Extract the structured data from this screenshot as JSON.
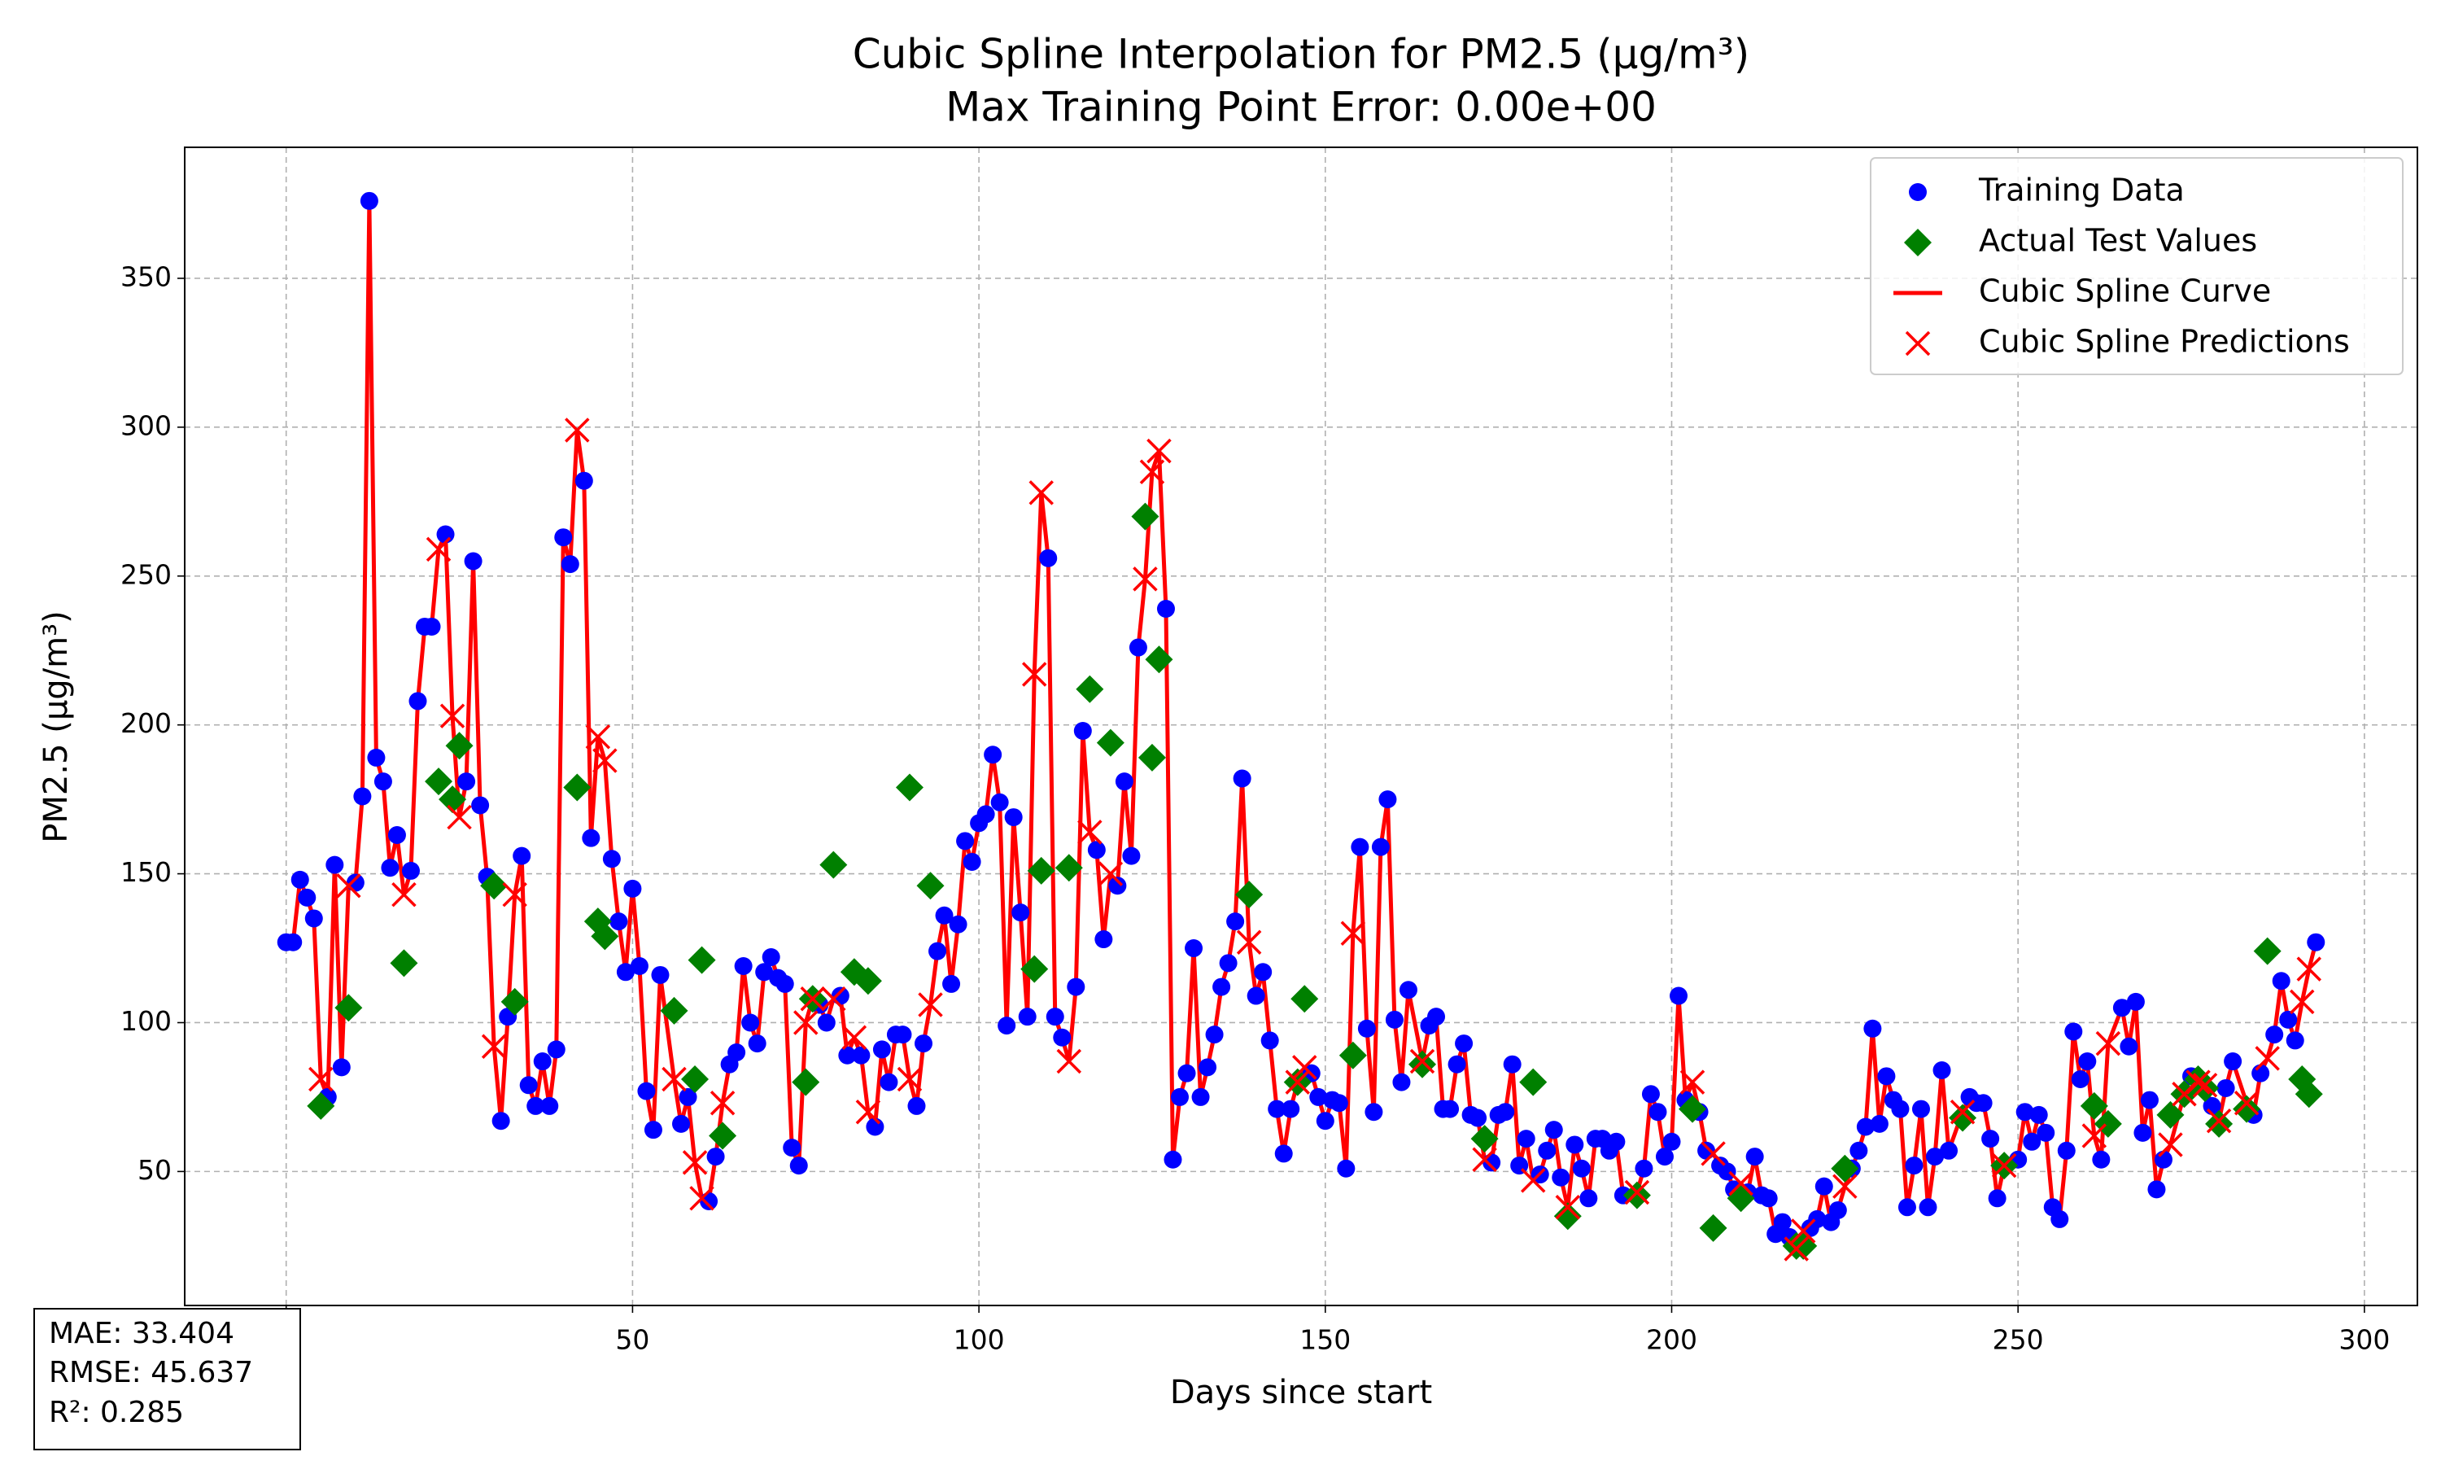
{
  "chart_data": {
    "type": "scatter",
    "title": "Cubic Spline Interpolation for PM2.5 (µg/m³)",
    "subtitle": "Max Training Point Error: 0.00e+00",
    "x_label": "Days since start",
    "y_label": "PM2.5 (µg/m³)",
    "xlim": [
      -14.65,
      307.65
    ],
    "ylim": [
      5,
      394
    ],
    "xticks": [
      0,
      50,
      100,
      150,
      200,
      250,
      300
    ],
    "yticks": [
      50,
      100,
      150,
      200,
      250,
      300,
      350
    ],
    "grid": true,
    "legend": "upper right",
    "metrics": [
      "MAE: 33.404",
      "RMSE: 45.637",
      "R²: 0.285"
    ],
    "series": [
      {
        "name": "Training Data",
        "color": "#0000ff",
        "marker": "circle",
        "x": [
          0,
          1,
          2,
          3,
          4,
          6,
          7,
          8,
          10,
          11,
          12,
          13,
          14,
          15,
          16,
          18,
          19,
          20,
          21,
          23,
          26,
          27,
          28,
          29,
          31,
          32,
          34,
          35,
          36,
          37,
          38,
          39,
          40,
          41,
          43,
          44,
          47,
          48,
          49,
          50,
          51,
          52,
          53,
          54,
          57,
          58,
          61,
          62,
          64,
          65,
          66,
          67,
          68,
          69,
          70,
          71,
          72,
          73,
          74,
          77,
          78,
          80,
          81,
          83,
          85,
          86,
          87,
          88,
          89,
          91,
          92,
          94,
          95,
          96,
          97,
          98,
          99,
          100,
          101,
          102,
          103,
          104,
          105,
          106,
          107,
          110,
          111,
          112,
          114,
          115,
          117,
          118,
          120,
          121,
          122,
          123,
          127,
          128,
          129,
          130,
          131,
          132,
          133,
          134,
          135,
          136,
          137,
          138,
          140,
          141,
          142,
          143,
          144,
          145,
          148,
          149,
          150,
          151,
          152,
          153,
          155,
          156,
          157,
          158,
          159,
          160,
          161,
          162,
          165,
          166,
          167,
          168,
          169,
          170,
          171,
          172,
          174,
          175,
          176,
          177,
          178,
          179,
          181,
          182,
          183,
          184,
          186,
          187,
          188,
          189,
          190,
          191,
          192,
          193,
          196,
          197,
          198,
          199,
          200,
          201,
          202,
          204,
          205,
          207,
          208,
          209,
          211,
          212,
          213,
          214,
          215,
          216,
          217,
          220,
          221,
          222,
          223,
          224,
          226,
          227,
          228,
          229,
          230,
          231,
          232,
          233,
          234,
          235,
          236,
          237,
          238,
          239,
          240,
          243,
          244,
          245,
          246,
          247,
          250,
          251,
          252,
          253,
          254,
          255,
          256,
          257,
          258,
          259,
          260,
          262,
          265,
          266,
          267,
          268,
          269,
          270,
          271,
          275,
          278,
          280,
          281,
          284,
          285,
          287,
          288,
          289,
          290,
          293
        ],
        "values": [
          127,
          127,
          148,
          142,
          135,
          75,
          153,
          85,
          147,
          176,
          376,
          189,
          181,
          152,
          163,
          151,
          208,
          233,
          233,
          264,
          181,
          255,
          173,
          149,
          67,
          102,
          156,
          79,
          72,
          87,
          72,
          91,
          263,
          254,
          282,
          162,
          155,
          134,
          117,
          145,
          119,
          77,
          64,
          116,
          66,
          75,
          40,
          55,
          86,
          90,
          119,
          100,
          93,
          117,
          122,
          115,
          113,
          58,
          52,
          106,
          100,
          109,
          89,
          89,
          65,
          91,
          80,
          96,
          96,
          72,
          93,
          124,
          136,
          113,
          133,
          161,
          154,
          167,
          170,
          190,
          174,
          99,
          169,
          137,
          102,
          256,
          102,
          95,
          112,
          198,
          158,
          128,
          146,
          181,
          156,
          226,
          239,
          54,
          75,
          83,
          125,
          75,
          85,
          96,
          112,
          120,
          134,
          182,
          109,
          117,
          94,
          71,
          56,
          71,
          83,
          75,
          67,
          74,
          73,
          51,
          159,
          98,
          70,
          159,
          175,
          101,
          80,
          111,
          99,
          102,
          71,
          71,
          86,
          93,
          69,
          68,
          53,
          69,
          70,
          86,
          52,
          61,
          49,
          57,
          64,
          48,
          59,
          51,
          41,
          61,
          61,
          57,
          60,
          42,
          51,
          76,
          70,
          55,
          60,
          109,
          74,
          70,
          57,
          52,
          50,
          44,
          43,
          55,
          42,
          41,
          29,
          33,
          28,
          31,
          34,
          45,
          33,
          37,
          51,
          57,
          65,
          98,
          66,
          82,
          74,
          71,
          38,
          52,
          71,
          38,
          55,
          84,
          57,
          75,
          73,
          73,
          61,
          41,
          54,
          70,
          60,
          69,
          63,
          38,
          34,
          57,
          97,
          81,
          87,
          54,
          105,
          92,
          107,
          63,
          74,
          44,
          54,
          82,
          72,
          78,
          87,
          69,
          83,
          96,
          114,
          101,
          94,
          127
        ]
      },
      {
        "name": "Actual Test Values",
        "color": "#008000",
        "marker": "diamond",
        "x": [
          5,
          9,
          17,
          22,
          24,
          25,
          30,
          33,
          42,
          45,
          46,
          56,
          59,
          60,
          63,
          75,
          76,
          79,
          82,
          84,
          90,
          93,
          108,
          109,
          113,
          116,
          119,
          124,
          125,
          126,
          139,
          146,
          147,
          154,
          164,
          173,
          180,
          185,
          195,
          203,
          206,
          210,
          218,
          219,
          225,
          242,
          248,
          261,
          263,
          272,
          274,
          276,
          277,
          279,
          283,
          286,
          291,
          292
        ],
        "values": [
          72,
          105,
          120,
          181,
          175,
          193,
          146,
          107,
          179,
          134,
          129,
          104,
          81,
          121,
          62,
          80,
          108,
          153,
          117,
          114,
          179,
          146,
          118,
          151,
          152,
          212,
          194,
          270,
          189,
          222,
          143,
          80,
          108,
          89,
          86,
          61,
          80,
          35,
          42,
          71,
          31,
          41,
          25,
          25,
          51,
          68,
          52,
          72,
          66,
          69,
          76,
          81,
          78,
          66,
          71,
          124,
          81,
          76
        ]
      },
      {
        "name": "Cubic Spline Curve",
        "color": "#ff0000",
        "marker": "line"
      },
      {
        "name": "Cubic Spline Predictions",
        "color": "#ff0000",
        "marker": "cross",
        "x": [
          5,
          9,
          17,
          22,
          24,
          25,
          30,
          33,
          42,
          45,
          46,
          56,
          59,
          60,
          63,
          75,
          76,
          79,
          82,
          84,
          90,
          93,
          108,
          109,
          113,
          116,
          119,
          124,
          125,
          126,
          139,
          146,
          147,
          154,
          164,
          173,
          180,
          185,
          195,
          203,
          206,
          210,
          218,
          219,
          225,
          242,
          248,
          261,
          263,
          272,
          274,
          276,
          277,
          279,
          283,
          286,
          291,
          292
        ],
        "values": [
          81,
          146,
          143,
          259,
          203,
          169,
          92,
          143,
          299,
          196,
          188,
          81,
          53,
          41,
          73,
          100,
          108,
          108,
          95,
          70,
          81,
          106,
          217,
          278,
          87,
          164,
          150,
          249,
          285,
          292,
          127,
          80,
          85,
          130,
          87,
          54,
          47,
          38,
          43,
          80,
          56,
          46,
          24,
          30,
          45,
          70,
          52,
          62,
          93,
          59,
          76,
          80,
          79,
          67,
          73,
          88,
          107,
          118
        ]
      }
    ]
  }
}
